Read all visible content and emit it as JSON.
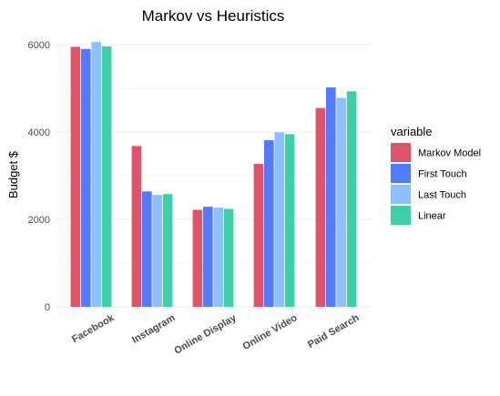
{
  "chart_data": {
    "type": "bar",
    "title": "Markov vs Heuristics",
    "xlabel": "",
    "ylabel": "Budget $",
    "ylim": [
      0,
      6100
    ],
    "yticks": [
      0,
      2000,
      4000,
      6000
    ],
    "grid": true,
    "legend": {
      "title": "variable",
      "placement": "right"
    },
    "categories": [
      "Facebook",
      "Instagram",
      "Online Display",
      "Online Video",
      "Paid Search"
    ],
    "series": [
      {
        "name": "Markov Model",
        "color": "#e0546a",
        "values": [
          5950,
          3680,
          2220,
          3270,
          4550
        ]
      },
      {
        "name": "First Touch",
        "color": "#5379ff",
        "values": [
          5900,
          2640,
          2290,
          3810,
          5020
        ]
      },
      {
        "name": "Last Touch",
        "color": "#8ebfff",
        "values": [
          6060,
          2560,
          2270,
          3990,
          4780
        ]
      },
      {
        "name": "Linear",
        "color": "#3ccfa8",
        "values": [
          5960,
          2580,
          2240,
          3950,
          4930
        ]
      }
    ]
  }
}
